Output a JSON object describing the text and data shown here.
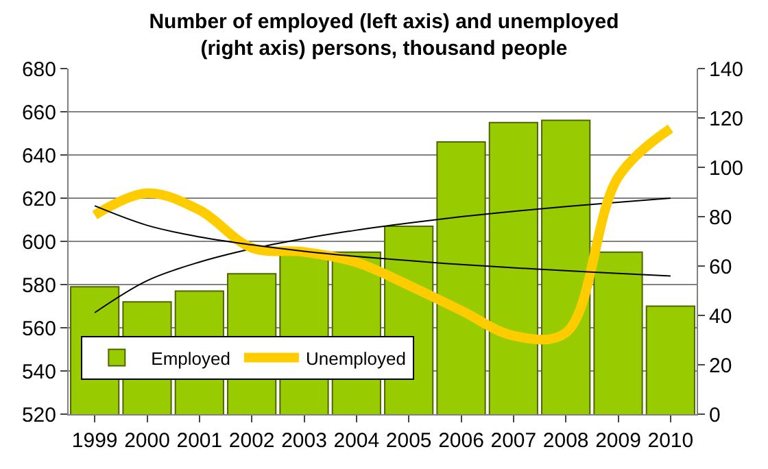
{
  "chart_data": {
    "type": "bar",
    "title": "Number of employed (left axis) and unemployed (right axis) persons, thousand people",
    "categories": [
      "1999",
      "2000",
      "2001",
      "2002",
      "2003",
      "2004",
      "2005",
      "2006",
      "2007",
      "2008",
      "2009",
      "2010"
    ],
    "series": [
      {
        "name": "Employed",
        "color": "#99cc00",
        "values": [
          579,
          572,
          577,
          585,
          595,
          595,
          607,
          646,
          655,
          656,
          595,
          570
        ]
      },
      {
        "name": "Unemployed",
        "type": "line",
        "axis": "y2",
        "color": "#ffcc00",
        "values": [
          80.6,
          89.5,
          82.7,
          67.4,
          65.7,
          61.5,
          52.2,
          42,
          31.8,
          33,
          96,
          115.7
        ]
      },
      {
        "type": "line",
        "color": "#000000",
        "values": [
          567,
          581.8,
          590.4,
          596.6,
          601.3,
          605.2,
          608.5,
          611.4,
          613.9,
          616.1,
          618.1,
          620
        ]
      },
      {
        "type": "line",
        "axis": "y2",
        "color": "#000000",
        "values": [
          84.4,
          76.5,
          71.8,
          68.6,
          66.0,
          63.9,
          62.2,
          60.6,
          59.3,
          58.1,
          57.0,
          56
        ]
      }
    ],
    "ylim": [
      520,
      680
    ],
    "yticks": [
      520,
      540,
      560,
      580,
      600,
      620,
      640,
      660,
      680
    ],
    "y2lim": [
      0,
      140
    ],
    "y2ticks": [
      0,
      20,
      40,
      60,
      80,
      100,
      120,
      140
    ],
    "grid": "y",
    "legend": "bottom left"
  }
}
